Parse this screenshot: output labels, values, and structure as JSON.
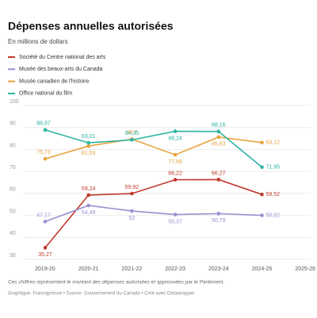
{
  "chart_data": {
    "type": "line",
    "title": "Dépenses annuelles autorisées",
    "subtitle": "En millions de dollars",
    "categories": [
      "2019-20",
      "2020-21",
      "2021-22",
      "2022-23",
      "2023-24",
      "2024-25",
      "2025-26"
    ],
    "series": [
      {
        "name": "Société du Centre national des arts",
        "color": "#c0392b",
        "values": [
          35.27,
          59.24,
          59.92,
          66.22,
          66.27,
          59.52,
          null
        ],
        "value_labels": [
          "35,27",
          "59,24",
          "59,92",
          "66,22",
          "66,27",
          "59,52",
          null
        ]
      },
      {
        "name": "Musée des beaux-arts du Canada",
        "color": "#9b8fd1",
        "values": [
          47.17,
          54.49,
          52,
          50.37,
          50.79,
          50.02,
          null
        ],
        "value_labels": [
          "47,17",
          "54,49",
          "52",
          "50,37",
          "50,79",
          "50,02",
          null
        ]
      },
      {
        "name": "Musée canadien de l'histoire",
        "color": "#e8a33d",
        "values": [
          75.73,
          81.53,
          84.7,
          77.56,
          85.63,
          83.12,
          null
        ],
        "value_labels": [
          "75,73",
          "81,53",
          "84,7",
          "77,56",
          "85,63",
          "83,12",
          null
        ]
      },
      {
        "name": "Office national du film",
        "color": "#2bb3a3",
        "values": [
          88.87,
          83.01,
          84.35,
          88.24,
          88.16,
          71.95,
          null
        ],
        "value_labels": [
          "88,87",
          "83,01",
          "84,35",
          "88,24",
          "88,16",
          "71,95",
          null
        ]
      }
    ],
    "ylim": [
      30,
      100
    ],
    "yticks": [
      30,
      40,
      50,
      60,
      70,
      80,
      90,
      100
    ],
    "grid": true,
    "note": "Ces chiffres représentent le montant des dépenses autorisées et approuvées par le Parlement.",
    "source": "Graphique: Francopresse • Source: Gouvernement du Canada • Créé avec Datawrapper"
  }
}
